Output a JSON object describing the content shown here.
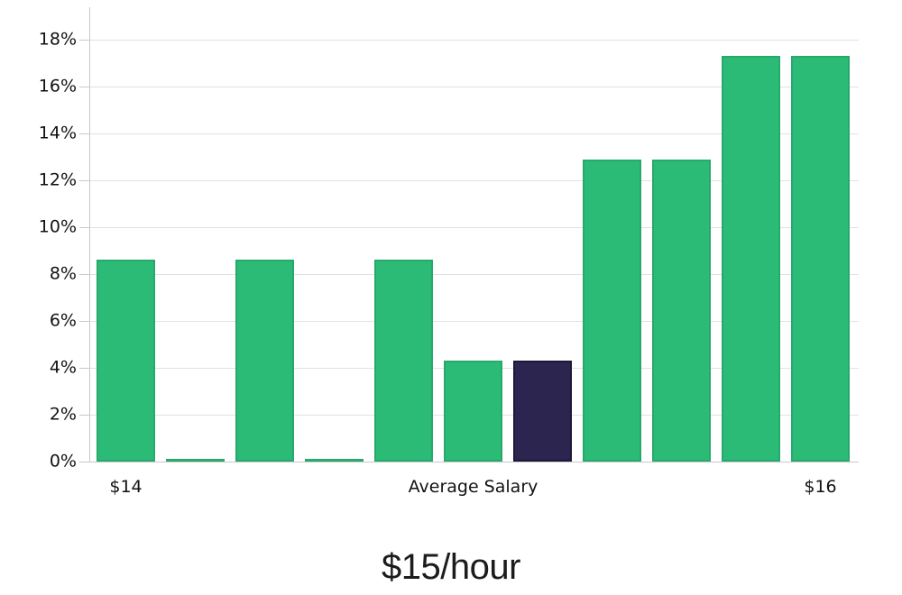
{
  "chart_data": {
    "type": "bar",
    "title": "$15/hour",
    "xlabel": "",
    "ylabel": "",
    "ylim": [
      0,
      18
    ],
    "y_tick_step": 2,
    "y_tick_labels": [
      "0%",
      "2%",
      "4%",
      "6%",
      "8%",
      "10%",
      "12%",
      "14%",
      "16%",
      "18%"
    ],
    "values": [
      8.6,
      0.1,
      8.6,
      0.1,
      8.6,
      4.3,
      4.3,
      12.9,
      12.9,
      17.3,
      17.3
    ],
    "highlight_index": 6,
    "x_tick_labels": [
      {
        "label": "$14",
        "bar_index": 0
      },
      {
        "label": "Average Salary",
        "bar_index": 5
      },
      {
        "label": "$16",
        "bar_index": 10
      }
    ],
    "grid": true,
    "legend": false,
    "colors": {
      "bar": "#2cbb77",
      "bar_border": "#27a96b",
      "highlight": "#2b2550",
      "highlight_border": "#1d1839",
      "gridline": "#e2e2e2",
      "axis": "#c9c9c9",
      "tick_text": "#121212",
      "title_text": "#1c1c1c"
    }
  }
}
